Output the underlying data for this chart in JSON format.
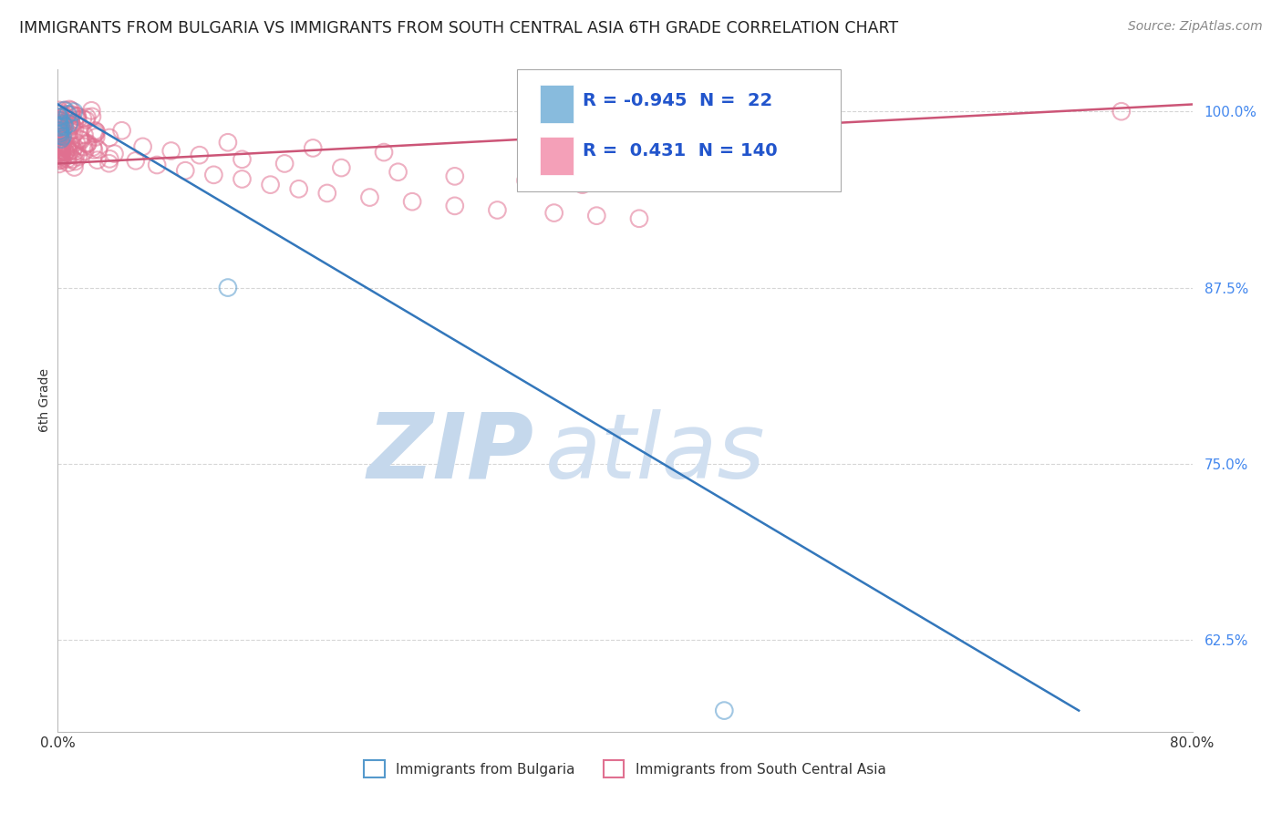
{
  "title": "IMMIGRANTS FROM BULGARIA VS IMMIGRANTS FROM SOUTH CENTRAL ASIA 6TH GRADE CORRELATION CHART",
  "source": "Source: ZipAtlas.com",
  "ylabel": "6th Grade",
  "xlim": [
    0.0,
    0.8
  ],
  "ylim": [
    0.56,
    1.03
  ],
  "watermark_zip": "ZIP",
  "watermark_atlas": "atlas",
  "legend_R_bulgaria": "-0.945",
  "legend_N_bulgaria": "22",
  "legend_R_south_asia": "0.431",
  "legend_N_south_asia": "140",
  "blue_color": "#88bbdd",
  "pink_color": "#f4a0b8",
  "blue_edge_color": "#5599cc",
  "pink_edge_color": "#e07090",
  "blue_line_color": "#3377bb",
  "pink_line_color": "#cc5577",
  "y_tick_positions": [
    0.625,
    0.75,
    0.875,
    1.0
  ],
  "y_tick_labels": [
    "62.5%",
    "75.0%",
    "87.5%",
    "100.0%"
  ],
  "blue_trend_x": [
    0.0,
    0.72
  ],
  "blue_trend_y": [
    1.005,
    0.575
  ],
  "pink_trend_x": [
    0.0,
    0.8
  ],
  "pink_trend_y": [
    0.963,
    1.005
  ],
  "background_color": "#ffffff",
  "grid_color": "#cccccc",
  "title_fontsize": 12.5,
  "source_fontsize": 10,
  "tick_color": "#4488ee",
  "scatter_size": 180
}
